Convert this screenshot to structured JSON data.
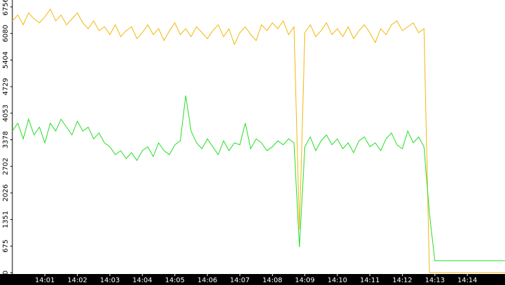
{
  "chart_data": {
    "type": "line",
    "categories": [
      null,
      null,
      null,
      null,
      null,
      null,
      "14:01",
      null,
      null,
      null,
      null,
      null,
      "14:02",
      null,
      null,
      null,
      null,
      null,
      "14:03",
      null,
      null,
      null,
      null,
      null,
      "14:04",
      null,
      null,
      null,
      null,
      null,
      "14:05",
      null,
      null,
      null,
      null,
      null,
      "14:06",
      null,
      null,
      null,
      null,
      null,
      "14:07",
      null,
      null,
      null,
      null,
      null,
      "14:08",
      null,
      null,
      null,
      null,
      null,
      "14:09",
      null,
      null,
      null,
      null,
      null,
      "14:10",
      null,
      null,
      null,
      null,
      null,
      "14:11",
      null,
      null,
      null,
      null,
      null,
      "14:12",
      null,
      null,
      null,
      null,
      null,
      "14:13",
      null,
      null,
      null,
      null,
      null,
      "14:14",
      null,
      null,
      null,
      null,
      null,
      null,
      null
    ],
    "series": [
      {
        "color": "#f2b705",
        "values": [
          6400,
          6550,
          6300,
          6600,
          6450,
          6350,
          6500,
          6700,
          6400,
          6550,
          6300,
          6450,
          6600,
          6350,
          6200,
          6400,
          6150,
          6250,
          6050,
          6300,
          6000,
          6150,
          6250,
          5950,
          6100,
          6300,
          6050,
          6200,
          5900,
          6150,
          6350,
          6050,
          6200,
          6000,
          6250,
          6100,
          5950,
          6150,
          6300,
          6000,
          6200,
          5800,
          6100,
          6250,
          6050,
          5900,
          6300,
          6150,
          6350,
          6200,
          6400,
          6050,
          6250,
          1100,
          6100,
          6300,
          6000,
          6150,
          6350,
          6050,
          6200,
          6000,
          6250,
          5950,
          6150,
          6300,
          6100,
          5850,
          6200,
          6050,
          6300,
          6400,
          6150,
          6250,
          6350,
          6100,
          6200,
          0,
          0,
          0,
          0,
          0,
          0,
          0,
          0,
          0,
          0,
          0,
          0,
          0,
          0,
          0
        ]
      },
      {
        "color": "#22dd22",
        "values": [
          3600,
          3800,
          3400,
          3900,
          3500,
          3700,
          3300,
          3800,
          3600,
          3900,
          3700,
          3500,
          3850,
          3600,
          3700,
          3400,
          3550,
          3300,
          3200,
          3000,
          3100,
          2900,
          3050,
          2850,
          3100,
          3200,
          2950,
          3300,
          3100,
          3000,
          3250,
          3350,
          4500,
          3600,
          3300,
          3150,
          3400,
          3200,
          3000,
          3350,
          3100,
          3300,
          3250,
          3800,
          3150,
          3400,
          3300,
          3100,
          3200,
          3350,
          3250,
          3400,
          3300,
          650,
          3200,
          3450,
          3100,
          3350,
          3500,
          3250,
          3400,
          3150,
          3300,
          3050,
          3350,
          3450,
          3200,
          3300,
          3100,
          3400,
          3550,
          3250,
          3150,
          3600,
          3300,
          3450,
          3200,
          1500,
          300,
          300,
          300,
          300,
          300,
          300,
          300,
          300,
          300,
          300,
          300,
          300,
          300,
          300
        ]
      }
    ],
    "ylim": [
      0,
      6756
    ],
    "yticks": [
      0,
      675,
      1351,
      2026,
      2702,
      3378,
      4053,
      4729,
      5404,
      6080,
      6756
    ],
    "grid": false
  }
}
